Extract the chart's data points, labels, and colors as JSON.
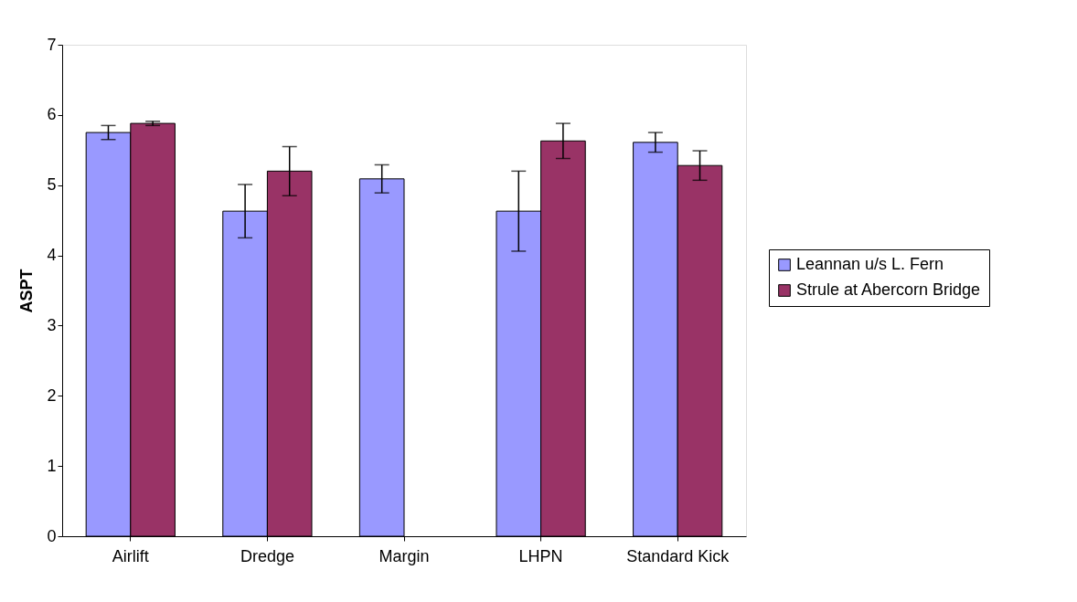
{
  "chart_data": {
    "type": "bar",
    "categories": [
      "Airlift",
      "Dredge",
      "Margin",
      "LHPN",
      "Standard Kick"
    ],
    "ylabel": "ASPT",
    "ylim": [
      0,
      7
    ],
    "yticks": [
      0,
      1,
      2,
      3,
      4,
      5,
      6,
      7
    ],
    "grid": false,
    "legend": "right",
    "series": [
      {
        "name": "Leannan u/s L. Fern",
        "color": "#9999ff",
        "values": [
          5.75,
          4.63,
          5.09,
          4.63,
          5.61
        ],
        "errors": [
          0.1,
          0.38,
          0.2,
          0.57,
          0.14
        ]
      },
      {
        "name": "Strule at Abercorn Bridge",
        "color": "#993366",
        "values": [
          5.88,
          5.2,
          null,
          5.63,
          5.28
        ],
        "errors": [
          0.03,
          0.35,
          null,
          0.25,
          0.21
        ]
      }
    ]
  }
}
